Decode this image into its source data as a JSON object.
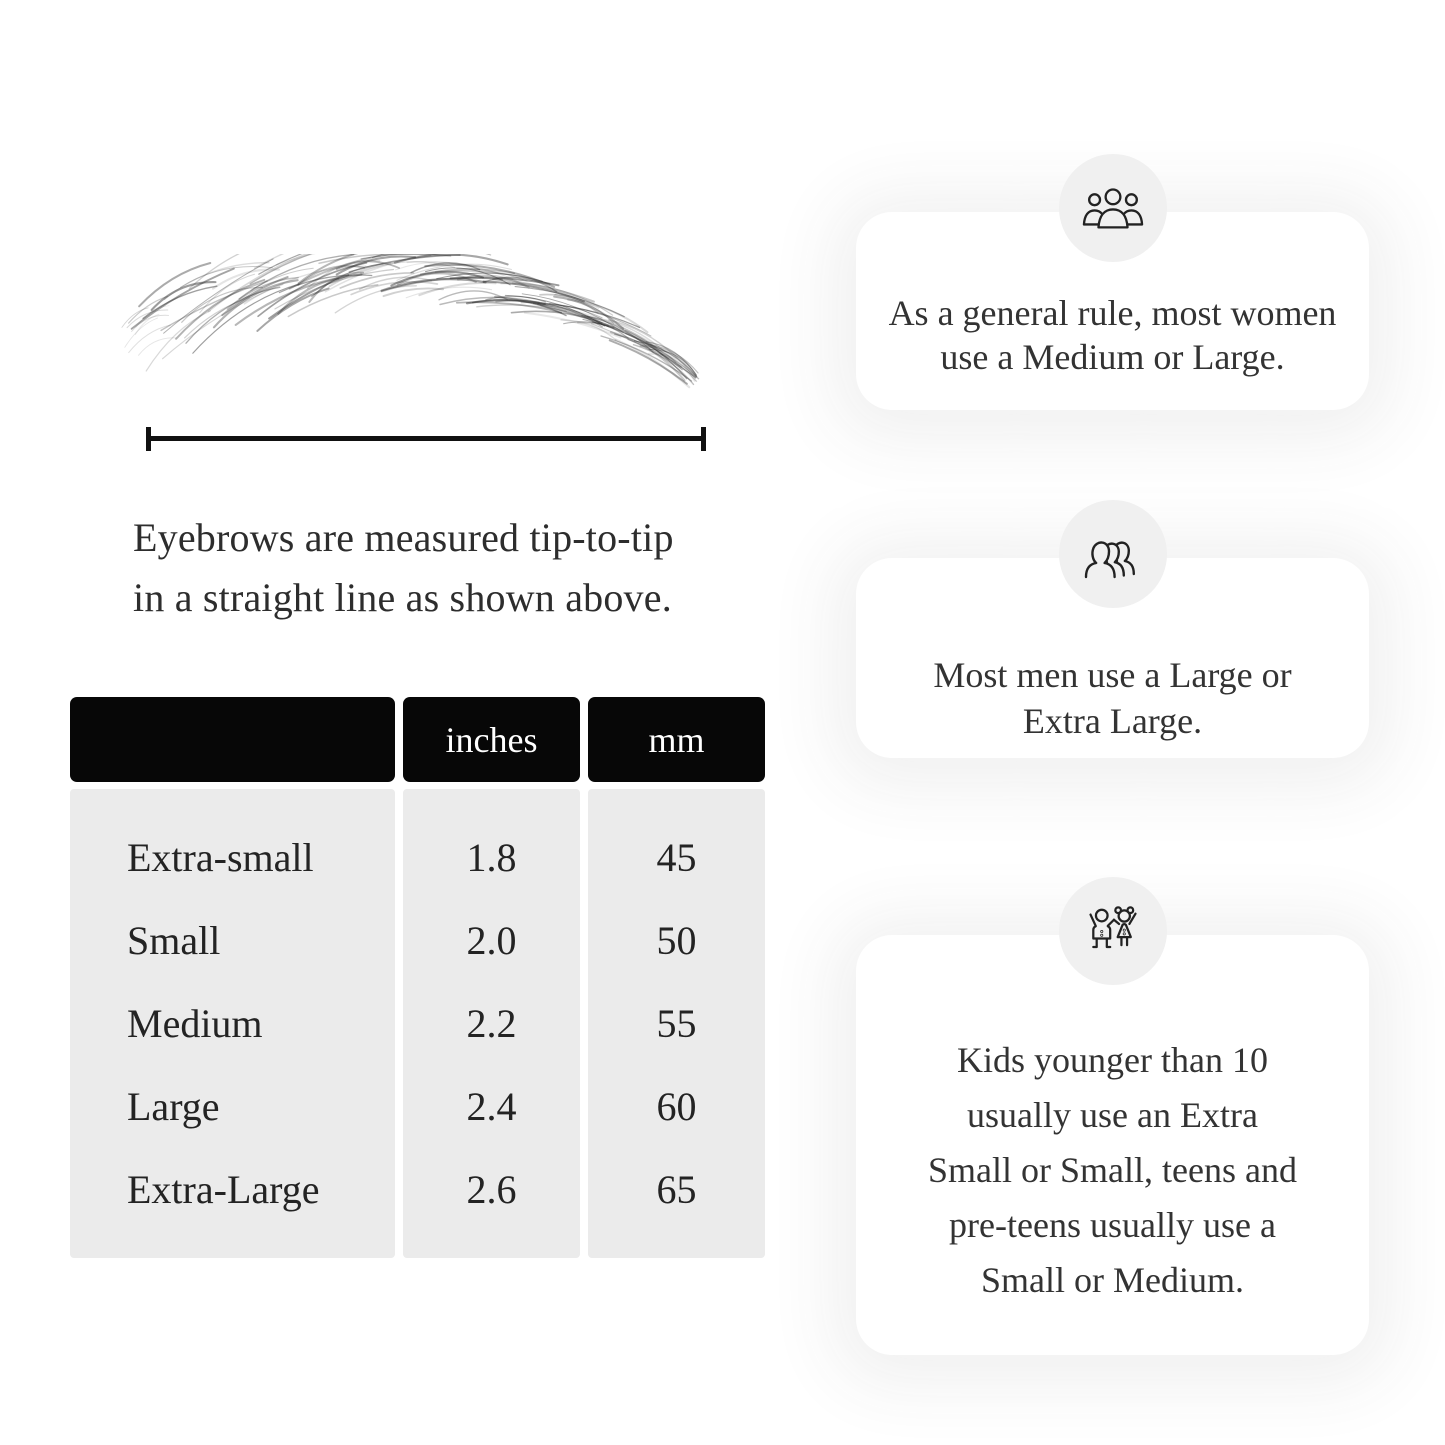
{
  "figure": {
    "caption_lines": [
      "Eyebrows are measured tip-to-tip",
      "in a straight line as shown above."
    ]
  },
  "table": {
    "headers": {
      "label": "",
      "inches": "inches",
      "mm": "mm"
    },
    "rows": [
      {
        "label": "Extra-small",
        "inches": "1.8",
        "mm": "45"
      },
      {
        "label": "Small",
        "inches": "2.0",
        "mm": "50"
      },
      {
        "label": "Medium",
        "inches": "2.2",
        "mm": "55"
      },
      {
        "label": "Large",
        "inches": "2.4",
        "mm": "60"
      },
      {
        "label": "Extra-Large",
        "inches": "2.6",
        "mm": "65"
      }
    ]
  },
  "cards": [
    {
      "icon": "women-group-icon",
      "lines": [
        "As a general rule, most women",
        "use a Medium or Large."
      ]
    },
    {
      "icon": "men-group-icon",
      "lines": [
        "Most men use a Large or",
        "Extra Large."
      ]
    },
    {
      "icon": "children-icon",
      "lines": [
        "Kids younger than 10",
        "usually use an Extra",
        "Small or Small, teens and",
        "pre-teens usually use a",
        "Small or Medium."
      ]
    }
  ],
  "colors": {
    "header_bg": "#070707",
    "header_text": "#ffffff",
    "table_body_bg": "#ebebeb",
    "card_bg": "#ffffff",
    "icon_circle_bg": "#f0f0f0",
    "rule_line": "#111111",
    "text": "#2e2e2e"
  }
}
